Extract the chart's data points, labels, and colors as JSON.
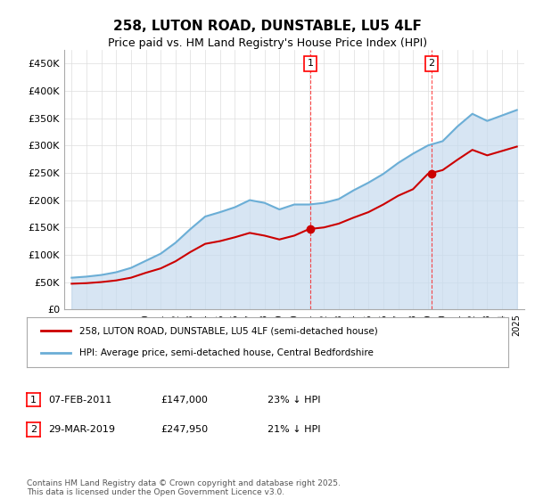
{
  "title": "258, LUTON ROAD, DUNSTABLE, LU5 4LF",
  "subtitle": "Price paid vs. HM Land Registry's House Price Index (HPI)",
  "xlabel": "",
  "ylabel": "",
  "ylim": [
    0,
    475000
  ],
  "yticks": [
    0,
    50000,
    100000,
    150000,
    200000,
    250000,
    300000,
    350000,
    400000,
    450000
  ],
  "ytick_labels": [
    "£0",
    "£50K",
    "£100K",
    "£150K",
    "£200K",
    "£250K",
    "£300K",
    "£350K",
    "£400K",
    "£450K"
  ],
  "background_color": "#ffffff",
  "plot_bg_color": "#ffffff",
  "grid_color": "#dddddd",
  "sale1_x": 2011.1,
  "sale1_y": 147000,
  "sale2_x": 2019.25,
  "sale2_y": 247950,
  "legend_line1": "258, LUTON ROAD, DUNSTABLE, LU5 4LF (semi-detached house)",
  "legend_line2": "HPI: Average price, semi-detached house, Central Bedfordshire",
  "table_row1": [
    "1",
    "07-FEB-2011",
    "£147,000",
    "23% ↓ HPI"
  ],
  "table_row2": [
    "2",
    "29-MAR-2019",
    "£247,950",
    "21% ↓ HPI"
  ],
  "footnote": "Contains HM Land Registry data © Crown copyright and database right 2025.\nThis data is licensed under the Open Government Licence v3.0.",
  "hpi_color": "#6baed6",
  "price_color": "#cc0000",
  "hpi_fill_color": "#c6dbef",
  "hpi_data_x": [
    1995,
    1996,
    1997,
    1998,
    1999,
    2000,
    2001,
    2002,
    2003,
    2004,
    2005,
    2006,
    2007,
    2008,
    2009,
    2010,
    2011,
    2012,
    2013,
    2014,
    2015,
    2016,
    2017,
    2018,
    2019,
    2020,
    2021,
    2022,
    2023,
    2024,
    2025
  ],
  "hpi_data_y": [
    58000,
    60000,
    63000,
    68000,
    76000,
    89000,
    102000,
    122000,
    147000,
    170000,
    178000,
    187000,
    200000,
    195000,
    183000,
    192000,
    192000,
    195000,
    202000,
    218000,
    232000,
    248000,
    268000,
    285000,
    300000,
    308000,
    335000,
    358000,
    345000,
    355000,
    365000
  ],
  "price_data_x": [
    1995,
    1996,
    1997,
    1998,
    1999,
    2000,
    2001,
    2002,
    2003,
    2004,
    2005,
    2006,
    2007,
    2008,
    2009,
    2010,
    2011,
    2012,
    2013,
    2014,
    2015,
    2016,
    2017,
    2018,
    2019,
    2020,
    2021,
    2022,
    2023,
    2024,
    2025
  ],
  "price_data_y": [
    47000,
    48000,
    50000,
    53000,
    58000,
    67000,
    75000,
    88000,
    105000,
    120000,
    125000,
    132000,
    140000,
    135000,
    128000,
    135000,
    147000,
    150000,
    157000,
    168000,
    178000,
    192000,
    208000,
    220000,
    247950,
    255000,
    274000,
    292000,
    282000,
    290000,
    298000
  ],
  "xmin": 1994.5,
  "xmax": 2025.5
}
